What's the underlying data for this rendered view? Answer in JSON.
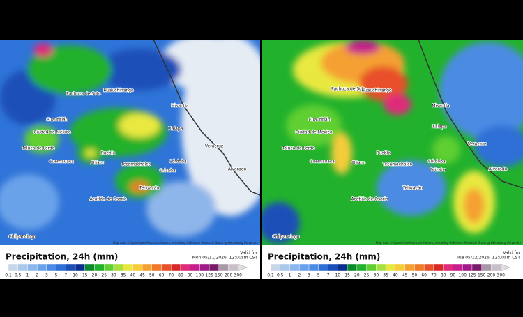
{
  "panels": [
    {
      "title": "Precipitation, 24h (mm)",
      "valid_label": "Valid for",
      "valid_time": "Mon 05/11/2026, 12:00am CST",
      "attribution": "Map data © OpenStreetMap contributors, rendering GIScience Research Group @ Heidelberg University",
      "places": [
        "Pachuca de Soto",
        "Huauchinango",
        "Misantla",
        "Cuautitlán",
        "Ciudad de México",
        "Toluca de Lerdo",
        "Cuernavaca",
        "Puebla",
        "Atlixco",
        "Tecamachalco",
        "Xalapa",
        "Córdoba",
        "Orizaba",
        "Tehuacán",
        "Veracruz",
        "Alvarado",
        "Acatlán de Osorio",
        "Chilpancingo"
      ]
    },
    {
      "title": "Precipitation, 24h (mm)",
      "valid_label": "Valid for",
      "valid_time": "Tue 05/12/2026, 12:00am CST",
      "attribution": "Map data © OpenStreetMap contributors, rendering GIScience Research Group @ Heidelberg University",
      "places": [
        "Pachuca de Soto",
        "Huauchinango",
        "Misantla",
        "Cuautitlán",
        "Ciudad de México",
        "Toluca de Lerdo",
        "Cuernavaca",
        "Puebla",
        "Atlixco",
        "Tecamachalco",
        "Xalapa",
        "Córdoba",
        "Orizaba",
        "Tehuacán",
        "Veracruz",
        "Alvarado",
        "Acatlán de Osorio",
        "Chilpancingo"
      ]
    }
  ],
  "scale": {
    "labels": [
      "0.1",
      "0.5",
      "1",
      "2",
      "3",
      "5",
      "7",
      "10",
      "15",
      "20",
      "25",
      "30",
      "35",
      "40",
      "45",
      "50",
      "60",
      "70",
      "80",
      "90",
      "100",
      "125",
      "150",
      "200",
      "300"
    ],
    "colors": [
      "#c8d7e8",
      "#a9c8ea",
      "#8cb8ee",
      "#6aa2ea",
      "#4b8be3",
      "#2e6fd6",
      "#1a4fb8",
      "#0a2f8f",
      "#0a8a2a",
      "#22b12c",
      "#5fcf32",
      "#a8e040",
      "#e8e840",
      "#f5cc3a",
      "#f5a030",
      "#f07a2a",
      "#e8502a",
      "#d82828",
      "#e02a7a",
      "#c81e8c",
      "#a01a8a",
      "#7a1a6a",
      "#a898a8",
      "#c8c0c8",
      "#e0dce0"
    ]
  }
}
